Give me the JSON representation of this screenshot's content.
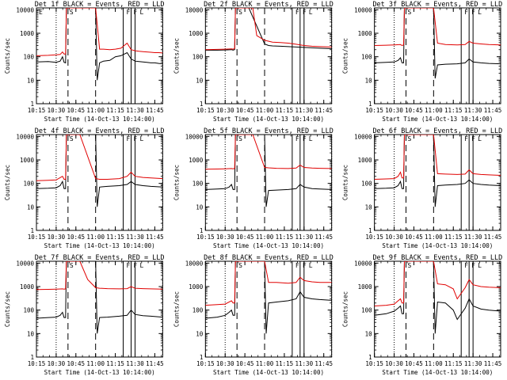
{
  "chart_data": [
    {
      "type": "line",
      "title": "Det 1f BLACK = Events, RED = LLD",
      "xlabel": "Start Time (14-Oct-13 10:14:00)",
      "ylabel": "Counts/sec",
      "x_ticks": [
        "10:15",
        "10:30",
        "10:45",
        "11:00",
        "11:15",
        "11:30",
        "11:45"
      ],
      "y_ticks": [
        "1",
        "10",
        "100",
        "1000",
        "10000"
      ],
      "ylim": [
        1,
        12000
      ],
      "yscale": "log",
      "markers": [
        "E",
        "S",
        "F",
        "F",
        "L"
      ],
      "series": [
        {
          "color": "#000000",
          "x": [
            10.25,
            10.4,
            10.5,
            10.55,
            10.58,
            10.6,
            10.62,
            10.63,
            11.0,
            11.02,
            11.05,
            11.1,
            11.18,
            11.25,
            11.32,
            11.4,
            11.45,
            11.5,
            11.55,
            11.6,
            11.65,
            11.7,
            11.75,
            11.8,
            11.85
          ],
          "y": [
            60,
            62,
            58,
            65,
            100,
            58,
            55,
            12000,
            12000,
            10,
            55,
            65,
            70,
            100,
            110,
            150,
            80,
            65,
            62,
            60,
            58,
            55,
            55,
            52,
            50
          ]
        },
        {
          "color": "#e00000",
          "x": [
            10.25,
            10.4,
            10.5,
            10.55,
            10.58,
            10.6,
            10.62,
            10.63,
            10.8,
            11.0,
            11.05,
            11.1,
            11.18,
            11.25,
            11.32,
            11.4,
            11.45,
            11.5,
            11.55,
            11.6,
            11.65,
            11.7,
            11.75,
            11.8,
            11.85
          ],
          "y": [
            110,
            115,
            120,
            125,
            160,
            130,
            130,
            12000,
            12000,
            12000,
            210,
            210,
            200,
            210,
            230,
            380,
            200,
            180,
            170,
            165,
            160,
            155,
            150,
            150,
            145
          ]
        }
      ]
    },
    {
      "type": "line",
      "title": "Det 2f BLACK = Events, RED = LLD",
      "xlabel": "Start Time (14-Oct-13 10:14:00)",
      "ylabel": "Counts/sec",
      "x_ticks": [
        "10:15",
        "10:30",
        "10:45",
        "11:00",
        "11:15",
        "11:30",
        "11:45"
      ],
      "y_ticks": [
        "1",
        "10",
        "100",
        "1000",
        "10000"
      ],
      "ylim": [
        1,
        12000
      ],
      "yscale": "log",
      "markers": [
        "S",
        "F",
        "F",
        "L"
      ],
      "series": [
        {
          "color": "#000000",
          "x": [
            10.25,
            10.4,
            10.5,
            10.58,
            10.6,
            10.62,
            10.63,
            10.8,
            11.0,
            11.05,
            11.1,
            11.2,
            11.3,
            11.4,
            11.5,
            11.6,
            11.7,
            11.85
          ],
          "y": [
            190,
            190,
            195,
            200,
            190,
            200,
            12000,
            12000,
            350,
            300,
            290,
            280,
            270,
            260,
            250,
            240,
            230,
            220
          ]
        },
        {
          "color": "#e00000",
          "x": [
            10.25,
            10.4,
            10.5,
            10.58,
            10.6,
            10.62,
            10.63,
            10.85,
            10.9,
            11.0,
            11.1,
            11.2,
            11.3,
            11.4,
            11.5,
            11.6,
            11.7,
            11.85
          ],
          "y": [
            200,
            205,
            210,
            215,
            210,
            220,
            12000,
            12000,
            800,
            500,
            420,
            400,
            380,
            340,
            300,
            280,
            270,
            260
          ]
        }
      ]
    },
    {
      "type": "line",
      "title": "Det 3f BLACK = Events, RED = LLD",
      "xlabel": "Start Time (14-Oct-13 10:14:00)",
      "ylabel": "Counts/sec",
      "x_ticks": [
        "10:15",
        "10:30",
        "10:45",
        "11:00",
        "11:15",
        "11:30",
        "11:45"
      ],
      "y_ticks": [
        "1",
        "10",
        "100",
        "1000",
        "10000"
      ],
      "ylim": [
        1,
        12000
      ],
      "yscale": "log",
      "markers": [
        "S",
        "F",
        "F",
        "L"
      ],
      "series": [
        {
          "color": "#000000",
          "x": [
            10.25,
            10.4,
            10.5,
            10.55,
            10.58,
            10.6,
            10.62,
            10.63,
            11.0,
            11.02,
            11.05,
            11.15,
            11.3,
            11.4,
            11.45,
            11.5,
            11.6,
            11.7,
            11.85
          ],
          "y": [
            55,
            58,
            60,
            70,
            90,
            55,
            55,
            12000,
            12000,
            12,
            45,
            48,
            50,
            55,
            80,
            60,
            55,
            52,
            50
          ]
        },
        {
          "color": "#e00000",
          "x": [
            10.25,
            10.4,
            10.5,
            10.58,
            10.6,
            10.62,
            10.63,
            11.0,
            11.05,
            11.15,
            11.3,
            11.4,
            11.45,
            11.5,
            11.6,
            11.7,
            11.85
          ],
          "y": [
            300,
            310,
            320,
            330,
            300,
            320,
            12000,
            12000,
            380,
            330,
            320,
            330,
            450,
            380,
            350,
            330,
            320
          ]
        }
      ]
    },
    {
      "type": "line",
      "title": "Det 4f BLACK = Events, RED = LLD",
      "xlabel": "Start Time (14-Oct-13 10:14:00)",
      "ylabel": "Counts/sec",
      "x_ticks": [
        "10:15",
        "10:30",
        "10:45",
        "11:00",
        "11:15",
        "11:30",
        "11:45"
      ],
      "y_ticks": [
        "1",
        "10",
        "100",
        "1000",
        "10000"
      ],
      "ylim": [
        1,
        12000
      ],
      "yscale": "log",
      "markers": [
        "S",
        "F",
        "F",
        "L"
      ],
      "series": [
        {
          "color": "#000000",
          "x": [
            10.25,
            10.4,
            10.5,
            10.55,
            10.58,
            10.6,
            10.62,
            10.63,
            11.0,
            11.02,
            11.05,
            11.15,
            11.3,
            11.4,
            11.45,
            11.5,
            11.6,
            11.7,
            11.85
          ],
          "y": [
            60,
            62,
            65,
            80,
            120,
            60,
            60,
            12000,
            12000,
            10,
            70,
            75,
            80,
            90,
            120,
            90,
            80,
            75,
            70
          ]
        },
        {
          "color": "#e00000",
          "x": [
            10.25,
            10.4,
            10.5,
            10.58,
            10.6,
            10.62,
            10.63,
            10.8,
            11.0,
            11.05,
            11.15,
            11.3,
            11.4,
            11.45,
            11.5,
            11.6,
            11.7,
            11.85
          ],
          "y": [
            130,
            135,
            140,
            200,
            150,
            150,
            12000,
            12000,
            160,
            150,
            150,
            160,
            200,
            300,
            200,
            180,
            170,
            160
          ]
        }
      ]
    },
    {
      "type": "line",
      "title": "Det 5f BLACK = Events, RED = LLD",
      "xlabel": "Start Time (14-Oct-13 10:14:00)",
      "ylabel": "Counts/sec",
      "x_ticks": [
        "10:15",
        "10:30",
        "10:45",
        "11:00",
        "11:15",
        "11:30",
        "11:45"
      ],
      "y_ticks": [
        "1",
        "10",
        "100",
        "1000",
        "10000"
      ],
      "ylim": [
        1,
        12000
      ],
      "yscale": "log",
      "markers": [
        "S",
        "F",
        "F",
        "L"
      ],
      "series": [
        {
          "color": "#000000",
          "x": [
            10.25,
            10.4,
            10.5,
            10.55,
            10.58,
            10.6,
            10.62,
            10.63,
            11.0,
            11.02,
            11.05,
            11.15,
            11.3,
            11.4,
            11.45,
            11.5,
            11.6,
            11.7,
            11.85
          ],
          "y": [
            55,
            58,
            60,
            70,
            90,
            55,
            55,
            12000,
            12000,
            10,
            50,
            52,
            55,
            60,
            90,
            70,
            60,
            58,
            55
          ]
        },
        {
          "color": "#e00000",
          "x": [
            10.25,
            10.4,
            10.5,
            10.58,
            10.6,
            10.62,
            10.63,
            10.85,
            11.0,
            11.05,
            11.15,
            11.3,
            11.4,
            11.45,
            11.5,
            11.6,
            11.7,
            11.85
          ],
          "y": [
            400,
            410,
            420,
            430,
            420,
            430,
            12000,
            12000,
            480,
            460,
            440,
            430,
            450,
            600,
            480,
            450,
            440,
            430
          ]
        }
      ]
    },
    {
      "type": "line",
      "title": "Det 6f BLACK = Events, RED = LLD",
      "xlabel": "Start Time (14-Oct-13 10:14:00)",
      "ylabel": "Counts/sec",
      "x_ticks": [
        "10:15",
        "10:30",
        "10:45",
        "11:00",
        "11:15",
        "11:30",
        "11:45"
      ],
      "y_ticks": [
        "1",
        "10",
        "100",
        "1000",
        "10000"
      ],
      "ylim": [
        1,
        12000
      ],
      "yscale": "log",
      "markers": [
        "S",
        "F",
        "F",
        "L"
      ],
      "series": [
        {
          "color": "#000000",
          "x": [
            10.25,
            10.4,
            10.5,
            10.55,
            10.58,
            10.6,
            10.62,
            10.63,
            11.0,
            11.02,
            11.05,
            11.15,
            11.3,
            11.4,
            11.45,
            11.5,
            11.6,
            11.7,
            11.85
          ],
          "y": [
            60,
            62,
            65,
            80,
            120,
            60,
            60,
            12000,
            12000,
            10,
            80,
            85,
            90,
            100,
            140,
            100,
            90,
            85,
            80
          ]
        },
        {
          "color": "#e00000",
          "x": [
            10.25,
            10.4,
            10.5,
            10.55,
            10.58,
            10.6,
            10.62,
            10.63,
            11.0,
            11.05,
            11.15,
            11.3,
            11.4,
            11.45,
            11.5,
            11.6,
            11.7,
            11.85
          ],
          "y": [
            150,
            155,
            160,
            200,
            300,
            170,
            170,
            12000,
            12000,
            260,
            250,
            240,
            250,
            380,
            260,
            240,
            230,
            220
          ]
        }
      ]
    },
    {
      "type": "line",
      "title": "Det 7f BLACK = Events, RED = LLD",
      "xlabel": "Start Time (14-Oct-13 10:14:00)",
      "ylabel": "Counts/sec",
      "x_ticks": [
        "10:15",
        "10:30",
        "10:45",
        "11:00",
        "11:15",
        "11:30",
        "11:45"
      ],
      "y_ticks": [
        "1",
        "10",
        "100",
        "1000",
        "10000"
      ],
      "ylim": [
        1,
        12000
      ],
      "yscale": "log",
      "markers": [
        "S",
        "F",
        "F",
        "L"
      ],
      "series": [
        {
          "color": "#000000",
          "x": [
            10.25,
            10.4,
            10.5,
            10.55,
            10.58,
            10.6,
            10.62,
            10.63,
            11.0,
            11.02,
            11.05,
            11.15,
            11.3,
            11.4,
            11.45,
            11.5,
            11.6,
            11.7,
            11.85
          ],
          "y": [
            45,
            48,
            50,
            60,
            80,
            48,
            48,
            12000,
            12000,
            10,
            48,
            50,
            55,
            60,
            100,
            65,
            58,
            55,
            50
          ]
        },
        {
          "color": "#e00000",
          "x": [
            10.25,
            10.4,
            10.5,
            10.58,
            10.6,
            10.62,
            10.63,
            10.8,
            10.9,
            11.0,
            11.05,
            11.15,
            11.3,
            11.4,
            11.45,
            11.5,
            11.6,
            11.7,
            11.85
          ],
          "y": [
            750,
            760,
            780,
            800,
            780,
            800,
            12000,
            12000,
            2000,
            900,
            850,
            820,
            800,
            820,
            1000,
            850,
            820,
            800,
            780
          ]
        }
      ]
    },
    {
      "type": "line",
      "title": "Det 8f BLACK = Events, RED = LLD",
      "xlabel": "Start Time (14-Oct-13 10:14:00)",
      "ylabel": "Counts/sec",
      "x_ticks": [
        "10:15",
        "10:30",
        "10:45",
        "11:00",
        "11:15",
        "11:30",
        "11:45"
      ],
      "y_ticks": [
        "1",
        "10",
        "100",
        "1000",
        "10000"
      ],
      "ylim": [
        1,
        12000
      ],
      "yscale": "log",
      "markers": [
        "S",
        "F",
        "F",
        "L"
      ],
      "series": [
        {
          "color": "#000000",
          "x": [
            10.25,
            10.4,
            10.5,
            10.55,
            10.58,
            10.6,
            10.62,
            10.63,
            11.0,
            11.02,
            11.05,
            11.15,
            11.3,
            11.4,
            11.45,
            11.5,
            11.6,
            11.7,
            11.85
          ],
          "y": [
            45,
            50,
            60,
            80,
            100,
            60,
            60,
            12000,
            12000,
            10,
            200,
            220,
            250,
            300,
            600,
            350,
            300,
            280,
            260
          ]
        },
        {
          "color": "#e00000",
          "x": [
            10.25,
            10.4,
            10.5,
            10.58,
            10.6,
            10.62,
            10.63,
            11.0,
            11.05,
            11.15,
            11.3,
            11.4,
            11.45,
            11.5,
            11.6,
            11.7,
            11.85
          ],
          "y": [
            160,
            170,
            180,
            250,
            200,
            200,
            12000,
            12000,
            1500,
            1500,
            1400,
            1500,
            2500,
            1800,
            1600,
            1500,
            1500
          ]
        }
      ]
    },
    {
      "type": "line",
      "title": "Det 9f BLACK = Events, RED = LLD",
      "xlabel": "Start Time (14-Oct-13 10:14:00)",
      "ylabel": "Counts/sec",
      "x_ticks": [
        "10:15",
        "10:30",
        "10:45",
        "11:00",
        "11:15",
        "11:30",
        "11:45"
      ],
      "y_ticks": [
        "1",
        "10",
        "100",
        "1000",
        "10000"
      ],
      "ylim": [
        1,
        12000
      ],
      "yscale": "log",
      "markers": [
        "S",
        "F",
        "F",
        "L"
      ],
      "series": [
        {
          "color": "#000000",
          "x": [
            10.25,
            10.4,
            10.5,
            10.55,
            10.58,
            10.6,
            10.62,
            10.63,
            11.0,
            11.02,
            11.05,
            11.15,
            11.25,
            11.3,
            11.4,
            11.45,
            11.5,
            11.6,
            11.7,
            11.85
          ],
          "y": [
            60,
            70,
            90,
            120,
            150,
            70,
            70,
            12000,
            12000,
            10,
            220,
            200,
            100,
            40,
            120,
            300,
            150,
            110,
            100,
            90
          ]
        },
        {
          "color": "#e00000",
          "x": [
            10.25,
            10.4,
            10.5,
            10.58,
            10.6,
            10.62,
            10.63,
            11.0,
            11.05,
            11.15,
            11.25,
            11.3,
            11.4,
            11.45,
            11.5,
            11.6,
            11.7,
            11.85
          ],
          "y": [
            150,
            160,
            180,
            300,
            200,
            200,
            12000,
            12000,
            1300,
            1200,
            800,
            300,
            900,
            2000,
            1200,
            1000,
            950,
            900
          ]
        }
      ]
    }
  ]
}
